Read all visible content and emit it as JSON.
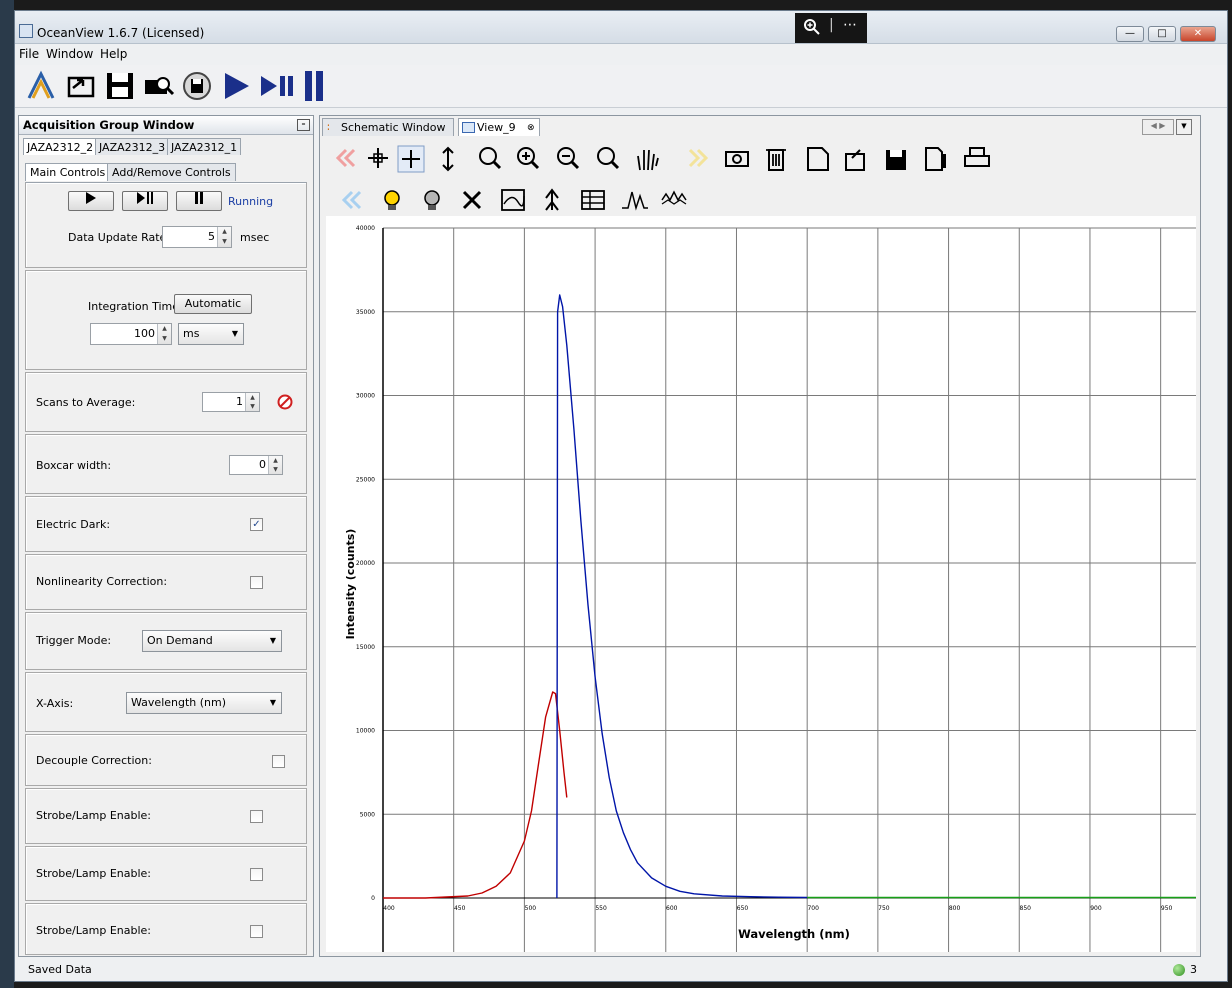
{
  "window": {
    "title": "OceanView 1.6.7 (Licensed)"
  },
  "zoom_overlay": {
    "zoom_icon": "zoom-in-icon",
    "more": "⋯"
  },
  "menu": {
    "file": "File",
    "window": "Window",
    "help": "Help"
  },
  "acq": {
    "title": "Acquisition Group Window",
    "device_tabs": [
      "JAZA2312_2",
      "JAZA2312_3",
      "JAZA2312_1"
    ],
    "sub_tabs": [
      "Main Controls",
      "Add/Remove Controls"
    ],
    "status": "Running",
    "data_update_rate": {
      "label": "Data Update Rate",
      "value": "5",
      "unit": "msec"
    },
    "integration": {
      "label": "Integration Time:",
      "button": "Automatic",
      "value": "100",
      "unit": "ms"
    },
    "scans": {
      "label": "Scans to Average:",
      "value": "1"
    },
    "boxcar": {
      "label": "Boxcar width:",
      "value": "0"
    },
    "electric_dark": {
      "label": "Electric Dark:",
      "checked": true,
      "mark": "✓"
    },
    "nonlinearity": {
      "label": "Nonlinearity Correction:"
    },
    "trigger": {
      "label": "Trigger Mode:",
      "value": "On Demand"
    },
    "xaxis": {
      "label": "X-Axis:",
      "value": "Wavelength (nm)"
    },
    "decouple": {
      "label": "Decouple Correction:"
    },
    "strobe": [
      "Strobe/Lamp Enable:",
      "Strobe/Lamp Enable:",
      "Strobe/Lamp Enable:"
    ]
  },
  "views": {
    "tabs": [
      "Schematic Window",
      "View_9"
    ],
    "close_glyph": "⊗"
  },
  "status": {
    "text": "Saved Data",
    "count": "3"
  },
  "colors": {
    "red": "#c00000",
    "blue": "#0015a8",
    "green": "#18a018"
  },
  "chart_data": {
    "type": "line",
    "xlabel": "Wavelength (nm)",
    "ylabel": "Intensity (counts)",
    "xlim": [
      400,
      975
    ],
    "ylim": [
      0,
      40000
    ],
    "xticks": [
      400,
      450,
      500,
      550,
      600,
      650,
      700,
      750,
      800,
      850,
      900,
      950
    ],
    "yticks": [
      0,
      5000,
      10000,
      15000,
      20000,
      25000,
      30000,
      35000,
      40000
    ],
    "grid": true,
    "series": [
      {
        "color": "red",
        "x": [
          400,
          430,
          460,
          470,
          480,
          490,
          500,
          505,
          510,
          515,
          520,
          522,
          525,
          528,
          530
        ],
        "y": [
          0,
          0,
          120,
          300,
          700,
          1500,
          3400,
          5200,
          8000,
          10800,
          12300,
          12200,
          10000,
          7500,
          6000
        ]
      },
      {
        "color": "blue",
        "x": [
          523,
          523.5,
          525,
          527,
          530,
          535,
          540,
          545,
          550,
          555,
          560,
          565,
          570,
          575,
          580,
          590,
          600,
          610,
          620,
          640,
          660,
          680,
          700
        ],
        "y": [
          0,
          35000,
          36000,
          35300,
          33000,
          28000,
          22500,
          17500,
          13200,
          9800,
          7200,
          5200,
          3900,
          2900,
          2100,
          1200,
          700,
          400,
          250,
          120,
          80,
          50,
          30
        ]
      },
      {
        "color": "green",
        "x": [
          700,
          750,
          800,
          850,
          900,
          950,
          975
        ],
        "y": [
          30,
          30,
          30,
          30,
          30,
          30,
          30
        ]
      }
    ]
  }
}
